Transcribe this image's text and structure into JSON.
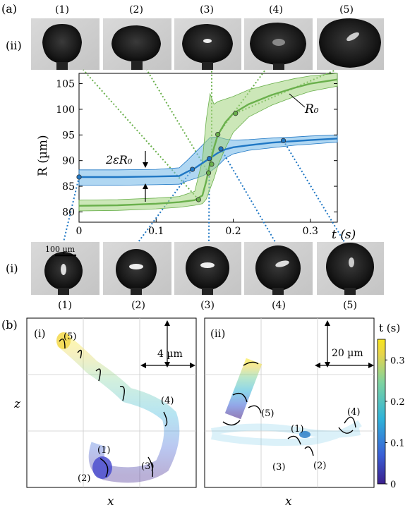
{
  "panel_labels": {
    "a": "(a)",
    "b": "(b)"
  },
  "row_labels": {
    "ii": "(ii)",
    "i": "(i)"
  },
  "frame_labels_top": [
    "(1)",
    "(2)",
    "(3)",
    "(4)",
    "(5)"
  ],
  "frame_labels_bottom": [
    "(1)",
    "(2)",
    "(3)",
    "(4)",
    "(5)"
  ],
  "scalebar_label": "100 µm",
  "annotations": {
    "r0": "R₀",
    "two_eps_r0": "2εR₀"
  },
  "chart_data": {
    "type": "line",
    "title": "",
    "xlabel": "t (s)",
    "ylabel": "R (µm)",
    "xlim": [
      0,
      0.335
    ],
    "ylim": [
      78,
      107
    ],
    "x_ticks": [
      0,
      0.1,
      0.2,
      0.3
    ],
    "x_tick_labels": [
      "0",
      "0.1",
      "0.2",
      "0.3"
    ],
    "y_ticks": [
      80,
      85,
      90,
      95,
      100,
      105
    ],
    "y_tick_labels": [
      "80",
      "85",
      "90",
      "95",
      "100",
      "105"
    ],
    "series": [
      {
        "color": "#1f77c4",
        "band_color": "#6fb6e8",
        "x": [
          0,
          0.05,
          0.1,
          0.13,
          0.14,
          0.15,
          0.16,
          0.17,
          0.18,
          0.19,
          0.2,
          0.22,
          0.25,
          0.28,
          0.3,
          0.335
        ],
        "y": [
          86.8,
          86.8,
          86.9,
          87.0,
          87.8,
          88.5,
          89.5,
          90.5,
          91.5,
          92.2,
          92.6,
          93.0,
          93.5,
          93.8,
          94.0,
          94.3
        ],
        "lower": [
          85.2,
          85.2,
          85.3,
          85.4,
          86.0,
          86.5,
          87.0,
          87.8,
          89.0,
          90.5,
          91.3,
          92.0,
          92.5,
          93.0,
          93.2,
          93.6
        ],
        "upper": [
          88.2,
          88.2,
          88.3,
          88.6,
          90.0,
          91.5,
          93.0,
          94.5,
          94.6,
          94.2,
          94.0,
          94.1,
          94.4,
          94.6,
          94.8,
          95.0
        ],
        "markers_x": [
          0.0,
          0.147,
          0.169,
          0.184,
          0.265
        ],
        "markers_y": [
          86.8,
          88.3,
          90.4,
          92.3,
          93.9
        ]
      },
      {
        "color": "#6ab04c",
        "band_color": "#a3d47d",
        "x": [
          0,
          0.05,
          0.1,
          0.13,
          0.15,
          0.16,
          0.165,
          0.17,
          0.175,
          0.18,
          0.19,
          0.2,
          0.22,
          0.25,
          0.28,
          0.3,
          0.335
        ],
        "y": [
          81.2,
          81.3,
          81.6,
          81.9,
          82.3,
          83.2,
          86.0,
          89.5,
          92.5,
          95.0,
          97.5,
          99.2,
          101.0,
          102.8,
          104.2,
          105.0,
          105.8
        ],
        "lower": [
          80.2,
          80.3,
          80.6,
          80.9,
          81.3,
          81.6,
          82.5,
          84.5,
          86.5,
          89.0,
          92.5,
          95.5,
          98.5,
          100.8,
          102.5,
          103.5,
          104.5
        ],
        "upper": [
          82.3,
          82.4,
          82.7,
          83.0,
          84.0,
          90.0,
          98.0,
          103.0,
          101.0,
          101.5,
          102.0,
          102.5,
          103.8,
          105.0,
          106.0,
          106.5,
          107.0
        ],
        "markers_x": [
          0.155,
          0.168,
          0.172,
          0.18,
          0.203
        ],
        "markers_y": [
          82.4,
          87.6,
          89.3,
          95.1,
          99.2
        ]
      }
    ]
  },
  "panel_b": {
    "left": {
      "label": "(i)",
      "scalebar": "4 µm",
      "xlabel": "x",
      "ylabel": "z",
      "points": [
        "(1)",
        "(2)",
        "(3)",
        "(4)",
        "(5)"
      ]
    },
    "right": {
      "label": "(ii)",
      "scalebar": "20 µm",
      "xlabel": "x",
      "points": [
        "(1)",
        "(2)",
        "(3)",
        "(4)",
        "(5)"
      ]
    },
    "colorbar": {
      "label": "t (s)",
      "ticks": [
        "0.3",
        "0.2",
        "0.1",
        "0"
      ],
      "tick_values": [
        0.3,
        0.2,
        0.1,
        0
      ]
    }
  }
}
